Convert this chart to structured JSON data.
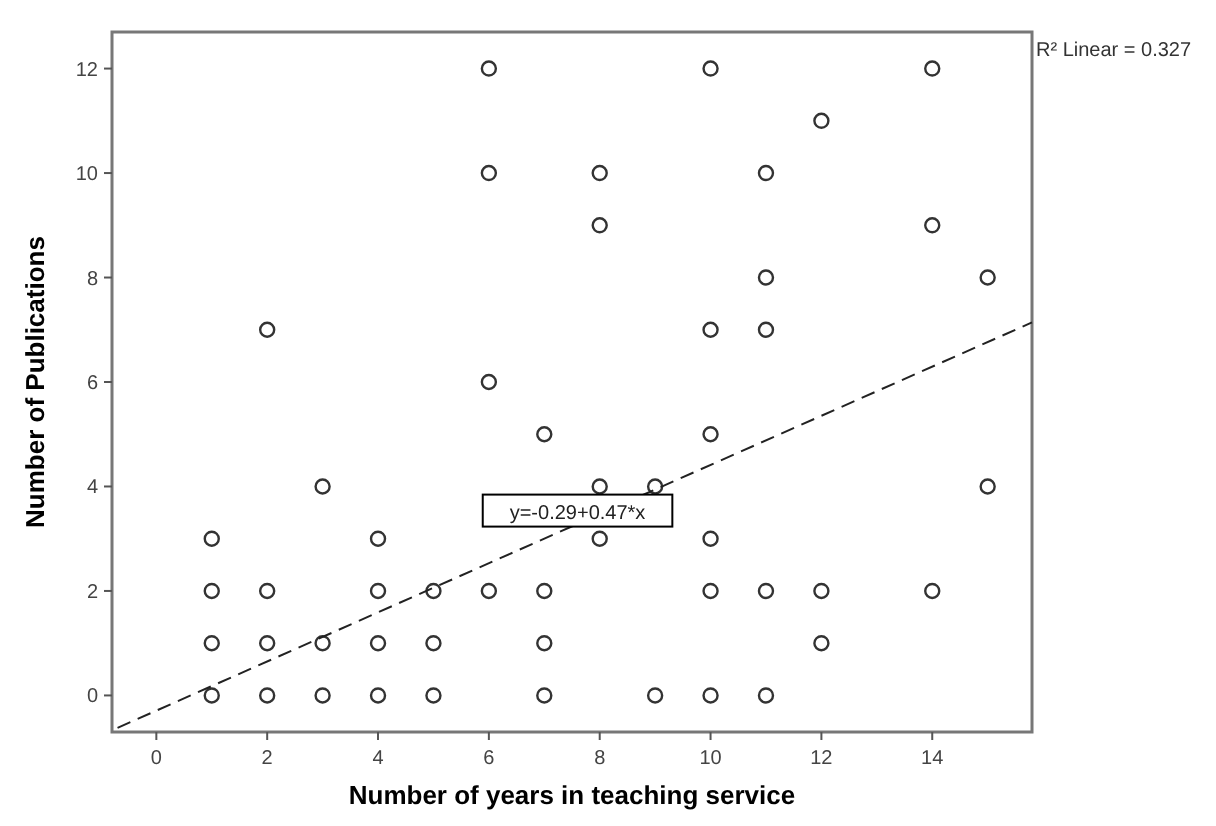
{
  "chart_data": {
    "type": "scatter",
    "xlabel": "Number of years in teaching service",
    "ylabel": "Number of Publications",
    "xlim": [
      -0.8,
      15.8
    ],
    "ylim": [
      -0.7,
      12.7
    ],
    "xticks": [
      0,
      2,
      4,
      6,
      8,
      10,
      12,
      14
    ],
    "yticks": [
      0,
      2,
      4,
      6,
      8,
      10,
      12
    ],
    "grid": false,
    "marker": "circle",
    "series": [
      {
        "type": "scatter",
        "color": "#333333",
        "x": [
          1,
          1,
          1,
          1,
          2,
          2,
          2,
          2,
          3,
          3,
          3,
          4,
          4,
          4,
          4,
          5,
          5,
          5,
          6,
          6,
          6,
          6,
          7,
          7,
          7,
          7,
          8,
          8,
          8,
          8,
          9,
          9,
          10,
          10,
          10,
          10,
          10,
          10,
          11,
          11,
          11,
          11,
          11,
          12,
          12,
          12,
          14,
          14,
          14,
          15,
          15
        ],
        "values": [
          0,
          1,
          2,
          3,
          0,
          1,
          2,
          7,
          0,
          1,
          4,
          0,
          1,
          2,
          3,
          0,
          1,
          2,
          2,
          6,
          10,
          12,
          0,
          1,
          2,
          5,
          3,
          4,
          9,
          10,
          0,
          4,
          0,
          2,
          3,
          5,
          7,
          12,
          0,
          2,
          7,
          8,
          10,
          1,
          2,
          11,
          2,
          9,
          12,
          4,
          8
        ]
      },
      {
        "type": "line",
        "color": "#222222",
        "line_style": "dashed",
        "marker": "none",
        "x": [
          -0.7,
          15.8
        ],
        "values": [
          -0.62,
          7.14
        ]
      }
    ],
    "annotations": [
      {
        "text": "y=-0.29+0.47*x",
        "x": 7.6,
        "y": 3.5
      },
      "R² Linear = 0.327"
    ]
  }
}
